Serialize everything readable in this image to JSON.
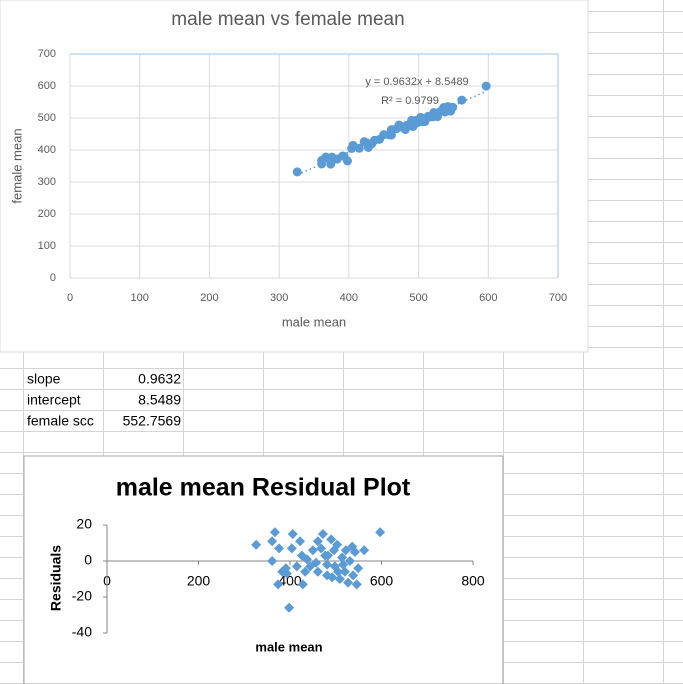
{
  "chart_data": [
    {
      "type": "scatter",
      "title": "male mean vs female mean",
      "x_label": "male mean",
      "y_label": "female mean",
      "marker": "circle",
      "color": "#5b9bd5",
      "grid": true,
      "x": [
        326,
        361,
        367,
        361,
        376,
        374,
        383,
        391,
        398,
        404,
        406,
        415,
        422,
        426,
        428,
        433,
        437,
        444,
        450,
        457,
        461,
        468,
        472,
        477,
        481,
        483,
        490,
        492,
        496,
        498,
        503,
        505,
        509,
        514,
        516,
        520,
        522,
        527,
        531,
        536,
        538,
        542,
        546,
        549,
        562,
        597,
        481,
        461,
        393
      ],
      "values": [
        331.6,
        356.3,
        378.0,
        367.3,
        377.7,
        355.8,
        371.4,
        381.2,
        365.9,
        404.7,
        414.6,
        405.3,
        426.0,
        421.9,
        407.8,
        419.6,
        430.5,
        433.2,
        448.0,
        447.7,
        446.6,
        466.3,
        478.2,
        471.0,
        469.9,
        476.8,
        492.5,
        473.4,
        492.3,
        485.2,
        502.0,
        489.0,
        488.8,
        505.6,
        503.6,
        503.4,
        517.3,
        504.2,
        520.0,
        532.8,
        518.8,
        535.6,
        521.5,
        533.4,
        555.9,
        599.6,
        463.9,
        463.6,
        380.1
      ],
      "trendline": {
        "slope": 0.9632,
        "intercept": 8.5489,
        "equation": "y = 0.9632x + 8.5489",
        "r2_label": "R² = 0.9799"
      },
      "xlim": [
        0,
        700
      ],
      "xticks": [
        0,
        100,
        200,
        300,
        400,
        500,
        600,
        700
      ],
      "ylim": [
        0,
        700
      ],
      "yticks": [
        0,
        100,
        200,
        300,
        400,
        500,
        600,
        700
      ]
    },
    {
      "type": "scatter",
      "title": "male mean Residual Plot",
      "x_label": "male mean",
      "y_label": "Residuals",
      "marker": "diamond",
      "color": "#5b9bd5",
      "grid": false,
      "x": [
        326,
        361,
        367,
        361,
        376,
        374,
        383,
        391,
        398,
        404,
        406,
        415,
        422,
        426,
        428,
        433,
        437,
        444,
        450,
        457,
        461,
        468,
        472,
        477,
        481,
        483,
        490,
        492,
        496,
        498,
        503,
        505,
        509,
        514,
        516,
        520,
        522,
        527,
        531,
        536,
        538,
        542,
        546,
        549,
        562,
        597,
        481,
        461,
        393
      ],
      "values": [
        9,
        0,
        16,
        11,
        7,
        -13,
        -6,
        -4,
        -26,
        7,
        15,
        -3,
        11,
        3,
        -13,
        -6,
        1,
        -3,
        6,
        -1,
        -6,
        7,
        15,
        3,
        -2,
        3,
        12,
        -9,
        6,
        -3,
        9,
        -6,
        -10,
        2,
        -2,
        -6,
        6,
        -12,
        0,
        8,
        -8,
        5,
        -13,
        -4,
        6,
        16,
        -8,
        11,
        -7
      ],
      "xlim": [
        0,
        800
      ],
      "xticks": [
        0,
        200,
        400,
        600,
        800
      ],
      "ylim": [
        -40,
        20
      ],
      "yticks": [
        -40,
        -20,
        0,
        20
      ]
    }
  ],
  "cells": {
    "rows": [
      [
        "slope",
        0.9632
      ],
      [
        "intercept",
        8.5489
      ],
      [
        "female scc",
        552.7569
      ]
    ]
  }
}
